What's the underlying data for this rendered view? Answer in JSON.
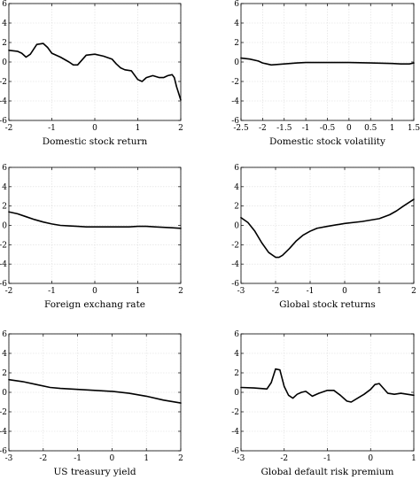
{
  "chart_data": [
    {
      "type": "line",
      "xlabel": "Domestic stock return",
      "xlim": [
        -2,
        2
      ],
      "ylim": [
        -6,
        6
      ],
      "xticks": [
        "-2",
        "-1",
        "0",
        "1",
        "2"
      ],
      "yticks": [
        "6",
        "4",
        "2",
        "0",
        "-2",
        "-4",
        "-6"
      ],
      "grid": true,
      "series": [
        {
          "x": [
            -2,
            -1.8,
            -1.7,
            -1.6,
            -1.5,
            -1.35,
            -1.2,
            -1.1,
            -1.0,
            -0.8,
            -0.6,
            -0.5,
            -0.4,
            -0.3,
            -0.2,
            0,
            0.2,
            0.4,
            0.5,
            0.6,
            0.7,
            0.85,
            1.0,
            1.1,
            1.2,
            1.35,
            1.5,
            1.6,
            1.7,
            1.8,
            1.85,
            1.9,
            2.0
          ],
          "y": [
            1.2,
            1.1,
            0.9,
            0.5,
            0.8,
            1.8,
            1.9,
            1.5,
            0.9,
            0.5,
            0.0,
            -0.3,
            -0.3,
            0.2,
            0.7,
            0.8,
            0.6,
            0.3,
            -0.2,
            -0.6,
            -0.8,
            -0.9,
            -1.8,
            -2.0,
            -1.6,
            -1.4,
            -1.6,
            -1.6,
            -1.4,
            -1.3,
            -1.6,
            -2.5,
            -3.9
          ]
        }
      ]
    },
    {
      "type": "line",
      "xlabel": "Domestic stock volatility",
      "xlim": [
        -2.5,
        1.5
      ],
      "ylim": [
        -6,
        6
      ],
      "xticks": [
        "-2.5",
        "-2",
        "-1.5",
        "-1",
        "-0.5",
        "0",
        "0.5",
        "1",
        "1.5"
      ],
      "yticks": [
        "6",
        "4",
        "2",
        "0",
        "-2",
        "-4",
        "-6"
      ],
      "grid": true,
      "series": [
        {
          "x": [
            -2.5,
            -2.3,
            -2.1,
            -2.0,
            -1.9,
            -1.8,
            -1.5,
            -1.2,
            -1.0,
            -0.5,
            0,
            0.5,
            1.0,
            1.2,
            1.4,
            1.5
          ],
          "y": [
            0.4,
            0.3,
            0.1,
            -0.1,
            -0.2,
            -0.3,
            -0.2,
            -0.1,
            -0.05,
            -0.05,
            -0.05,
            -0.1,
            -0.15,
            -0.2,
            -0.2,
            -0.1
          ]
        }
      ]
    },
    {
      "type": "line",
      "xlabel": "Foreign exchang rate",
      "xlim": [
        -2,
        2
      ],
      "ylim": [
        -6,
        6
      ],
      "xticks": [
        "-2",
        "-1",
        "0",
        "1",
        "2"
      ],
      "yticks": [
        "6",
        "4",
        "2",
        "0",
        "-2",
        "-4",
        "-6"
      ],
      "grid": true,
      "series": [
        {
          "x": [
            -2,
            -1.8,
            -1.6,
            -1.4,
            -1.2,
            -1.0,
            -0.8,
            -0.6,
            -0.4,
            -0.2,
            0,
            0.4,
            0.8,
            1.0,
            1.2,
            1.4,
            1.6,
            1.8,
            2.0
          ],
          "y": [
            1.4,
            1.2,
            0.9,
            0.6,
            0.35,
            0.15,
            0.0,
            -0.05,
            -0.1,
            -0.15,
            -0.15,
            -0.15,
            -0.15,
            -0.1,
            -0.1,
            -0.15,
            -0.2,
            -0.25,
            -0.3
          ]
        }
      ]
    },
    {
      "type": "line",
      "xlabel": "Global stock returns",
      "xlim": [
        -3,
        2
      ],
      "ylim": [
        -6,
        6
      ],
      "xticks": [
        "-3",
        "-2",
        "-1",
        "0",
        "1",
        "2"
      ],
      "yticks": [
        "6",
        "4",
        "2",
        "0",
        "-2",
        "-4",
        "-6"
      ],
      "grid": true,
      "series": [
        {
          "x": [
            -3,
            -2.8,
            -2.6,
            -2.4,
            -2.2,
            -2.0,
            -1.9,
            -1.8,
            -1.6,
            -1.4,
            -1.2,
            -1.0,
            -0.8,
            -0.5,
            0,
            0.5,
            1.0,
            1.3,
            1.5,
            1.7,
            2.0
          ],
          "y": [
            0.8,
            0.3,
            -0.6,
            -1.8,
            -2.8,
            -3.3,
            -3.3,
            -3.1,
            -2.4,
            -1.6,
            -1.0,
            -0.6,
            -0.3,
            -0.1,
            0.2,
            0.4,
            0.7,
            1.1,
            1.5,
            2.0,
            2.7
          ]
        }
      ]
    },
    {
      "type": "line",
      "xlabel": "US treasury yield",
      "xlim": [
        -3,
        2
      ],
      "ylim": [
        -6,
        6
      ],
      "xticks": [
        "-3",
        "-2",
        "-1",
        "0",
        "1",
        "2"
      ],
      "yticks": [
        "6",
        "4",
        "2",
        "0",
        "-2",
        "-4",
        "-6"
      ],
      "grid": true,
      "series": [
        {
          "x": [
            -3,
            -2.6,
            -2.2,
            -1.8,
            -1.5,
            -1.0,
            -0.5,
            0,
            0.5,
            1.0,
            1.5,
            2.0
          ],
          "y": [
            1.3,
            1.1,
            0.8,
            0.5,
            0.4,
            0.3,
            0.2,
            0.1,
            -0.1,
            -0.4,
            -0.8,
            -1.1
          ]
        }
      ]
    },
    {
      "type": "line",
      "xlabel": "Global default risk premium",
      "xlim": [
        -3,
        1
      ],
      "ylim": [
        -6,
        6
      ],
      "xticks": [
        "-3",
        "-2",
        "-1",
        "0",
        "1"
      ],
      "yticks": [
        "6",
        "4",
        "2",
        "0",
        "-2",
        "-4",
        "-6"
      ],
      "grid": true,
      "series": [
        {
          "x": [
            -3,
            -2.7,
            -2.4,
            -2.3,
            -2.2,
            -2.1,
            -2.0,
            -1.9,
            -1.8,
            -1.7,
            -1.6,
            -1.5,
            -1.35,
            -1.2,
            -1.0,
            -0.85,
            -0.7,
            -0.55,
            -0.45,
            -0.3,
            -0.15,
            0,
            0.1,
            0.2,
            0.3,
            0.4,
            0.55,
            0.7,
            0.85,
            1.0
          ],
          "y": [
            0.5,
            0.45,
            0.35,
            1.0,
            2.4,
            2.3,
            0.6,
            -0.3,
            -0.6,
            -0.2,
            0.0,
            0.1,
            -0.4,
            -0.1,
            0.2,
            0.2,
            -0.3,
            -0.9,
            -1.0,
            -0.6,
            -0.2,
            0.3,
            0.8,
            0.9,
            0.4,
            -0.1,
            -0.2,
            -0.1,
            -0.2,
            -0.3
          ]
        }
      ]
    }
  ]
}
